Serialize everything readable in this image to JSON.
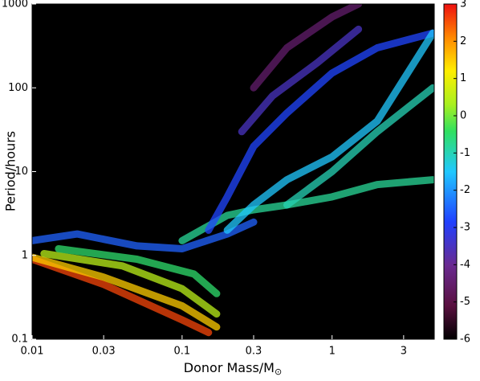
{
  "chart_data": {
    "type": "track-density",
    "xlabel": {
      "text": "Donor Mass/M",
      "subscript": "⊙"
    },
    "ylabel": "Period/hours",
    "xscale": "log",
    "yscale": "log",
    "xlim": [
      0.01,
      4.8
    ],
    "ylim": [
      0.1,
      1000
    ],
    "xticks": [
      0.01,
      0.03,
      0.1,
      0.3,
      1,
      3
    ],
    "yticks": [
      0.1,
      1,
      10,
      100,
      1000
    ],
    "background": "#000000",
    "colorbar": {
      "lim": [
        -6,
        3
      ],
      "ticks": [
        -6,
        -5,
        -4,
        -3,
        -2,
        -1,
        0,
        1,
        2,
        3
      ]
    },
    "series": [
      {
        "c": 2.6,
        "x": [
          0.01,
          0.03,
          0.1,
          0.15
        ],
        "y": [
          0.9,
          0.45,
          0.17,
          0.12
        ]
      },
      {
        "c": 1.5,
        "x": [
          0.01,
          0.03,
          0.1,
          0.17
        ],
        "y": [
          0.95,
          0.55,
          0.25,
          0.14
        ]
      },
      {
        "c": 0.5,
        "x": [
          0.012,
          0.04,
          0.1,
          0.17
        ],
        "y": [
          1.05,
          0.75,
          0.4,
          0.2
        ]
      },
      {
        "c": -0.5,
        "x": [
          0.015,
          0.05,
          0.12,
          0.17
        ],
        "y": [
          1.2,
          0.9,
          0.6,
          0.35
        ]
      },
      {
        "c": -2.5,
        "x": [
          0.01,
          0.02,
          0.05,
          0.1,
          0.2,
          0.3
        ],
        "y": [
          1.5,
          1.8,
          1.3,
          1.2,
          1.8,
          2.5
        ]
      },
      {
        "c": -0.8,
        "x": [
          0.1,
          0.2,
          0.3,
          0.5,
          1,
          2,
          4.7
        ],
        "y": [
          1.5,
          3,
          3.5,
          4,
          5,
          7,
          8
        ]
      },
      {
        "c": -2.8,
        "x": [
          0.15,
          0.2,
          0.3,
          0.5,
          1,
          2,
          4.7
        ],
        "y": [
          2,
          5,
          20,
          50,
          150,
          300,
          450
        ]
      },
      {
        "c": -1.5,
        "x": [
          0.2,
          0.3,
          0.5,
          1,
          2,
          4.7
        ],
        "y": [
          2,
          4,
          8,
          15,
          40,
          450
        ]
      },
      {
        "c": -1,
        "x": [
          0.5,
          1,
          2,
          4.7
        ],
        "y": [
          4,
          10,
          30,
          100
        ]
      },
      {
        "c": -4.5,
        "x": [
          0.3,
          0.5,
          1,
          1.5
        ],
        "y": [
          100,
          300,
          700,
          1000
        ]
      },
      {
        "c": -3.5,
        "x": [
          0.25,
          0.4,
          0.8,
          1.5
        ],
        "y": [
          30,
          80,
          200,
          500
        ]
      }
    ]
  }
}
